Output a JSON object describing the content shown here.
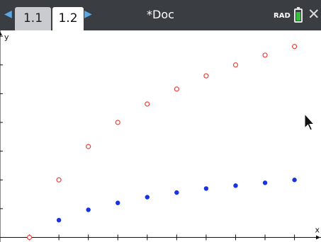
{
  "toolbar": {
    "tabs": [
      {
        "label": "1.1"
      },
      {
        "label": "1.2"
      }
    ],
    "document_title": "*Doc",
    "angle_mode": "RAD",
    "battery_level": 0.85,
    "colors": {
      "bar": "#3a3d42",
      "arrow": "#5aa8e8",
      "battery": "#34c23c"
    },
    "icons": [
      "arrow-left-icon",
      "arrow-right-icon",
      "battery-icon",
      "close-icon"
    ]
  },
  "chart_data": {
    "type": "scatter",
    "xlabel": "x",
    "ylabel": "y",
    "xlim": [
      0.0,
      10.9
    ],
    "ylim": [
      -0.08,
      3.6
    ],
    "x_ticks": [
      "1",
      "2",
      "3",
      "4",
      "5",
      "6",
      "7",
      "8",
      "9",
      "10"
    ],
    "y_ticks": [
      "0.5",
      "1.",
      "1.5",
      "2.",
      "2.5",
      "3.",
      "3.5"
    ],
    "series": [
      {
        "marker": "hollow-circle",
        "color": "#e8403a",
        "x": [
          1,
          2,
          3,
          4,
          5,
          6,
          7,
          8,
          9,
          10
        ],
        "y": [
          0,
          1,
          1.58,
          2,
          2.32,
          2.58,
          2.81,
          3,
          3.17,
          3.32
        ]
      },
      {
        "marker": "filled-circle",
        "color": "#1a33e0",
        "x": [
          2,
          3,
          4,
          5,
          6,
          7,
          8,
          9,
          10
        ],
        "y": [
          0.3,
          0.48,
          0.6,
          0.7,
          0.78,
          0.85,
          0.9,
          0.95,
          1
        ]
      }
    ]
  },
  "cursor": {
    "icon": "mouse-pointer-icon"
  }
}
